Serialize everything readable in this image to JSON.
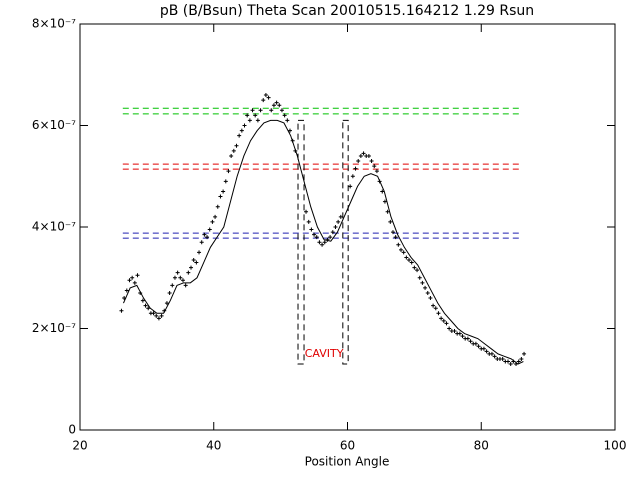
{
  "chart_data": {
    "type": "line",
    "title": "pB (B/Bsun) Theta Scan 20010515.164212 1.29 Rsun",
    "xlabel": "Position Angle",
    "xlim": [
      20,
      100
    ],
    "xticks": [
      20,
      40,
      60,
      80,
      100
    ],
    "ylim": [
      0,
      8e-07
    ],
    "yticks": [
      0,
      {
        "value": 2e-07,
        "label": "2×10⁻⁷"
      },
      {
        "value": 4e-07,
        "label": "4×10⁻⁷"
      },
      {
        "value": 6e-07,
        "label": "6×10⁻⁷"
      },
      {
        "value": 8e-07,
        "label": "8×10⁻⁷"
      }
    ],
    "series": [
      {
        "mode": "markers",
        "color": "#000000",
        "x": [
          26.2,
          26.6,
          27.0,
          27.4,
          27.8,
          28.2,
          28.6,
          29.0,
          29.4,
          29.8,
          30.2,
          30.6,
          31.0,
          31.4,
          31.8,
          32.2,
          32.6,
          33.0,
          33.4,
          33.8,
          34.2,
          34.6,
          35.0,
          35.4,
          35.8,
          36.2,
          36.6,
          37.0,
          37.4,
          37.8,
          38.2,
          38.6,
          39.0,
          39.4,
          39.8,
          40.2,
          40.6,
          41.0,
          41.4,
          41.8,
          42.2,
          42.6,
          43.0,
          43.4,
          43.8,
          44.2,
          44.6,
          45.0,
          45.4,
          45.8,
          46.2,
          46.6,
          47.0,
          47.4,
          47.8,
          48.2,
          48.6,
          49.0,
          49.4,
          49.8,
          50.2,
          50.6,
          51.0,
          51.4,
          51.8,
          52.2,
          53.8,
          54.2,
          54.6,
          55.0,
          55.4,
          55.8,
          56.2,
          56.6,
          57.0,
          57.4,
          57.8,
          58.2,
          58.6,
          59.0,
          60.4,
          60.8,
          61.2,
          61.6,
          62.0,
          62.4,
          62.8,
          63.2,
          63.6,
          64.0,
          64.4,
          64.8,
          65.2,
          65.6,
          66.0,
          66.4,
          66.8,
          67.2,
          67.6,
          68.0,
          68.4,
          68.8,
          69.2,
          69.6,
          70.0,
          70.4,
          70.8,
          71.2,
          71.6,
          72.0,
          72.4,
          72.8,
          73.2,
          73.6,
          74.0,
          74.4,
          74.8,
          75.2,
          75.6,
          76.0,
          76.4,
          76.8,
          77.2,
          77.6,
          78.0,
          78.4,
          78.8,
          79.2,
          79.6,
          80.0,
          80.4,
          80.8,
          81.2,
          81.6,
          82.0,
          82.4,
          82.8,
          83.2,
          83.6,
          84.0,
          84.4,
          84.8,
          85.2,
          85.6,
          86.0,
          86.4
        ],
        "values": [
          2.35e-07,
          2.6e-07,
          2.75e-07,
          2.95e-07,
          3e-07,
          2.9e-07,
          3.05e-07,
          2.7e-07,
          2.55e-07,
          2.45e-07,
          2.4e-07,
          2.3e-07,
          2.3e-07,
          2.25e-07,
          2.2e-07,
          2.25e-07,
          2.35e-07,
          2.5e-07,
          2.7e-07,
          2.85e-07,
          3e-07,
          3.1e-07,
          3e-07,
          2.95e-07,
          2.85e-07,
          3.1e-07,
          3.2e-07,
          3.35e-07,
          3.3e-07,
          3.5e-07,
          3.7e-07,
          3.85e-07,
          3.8e-07,
          3.95e-07,
          4.1e-07,
          4.2e-07,
          4.4e-07,
          4.6e-07,
          4.7e-07,
          4.9e-07,
          5.1e-07,
          5.4e-07,
          5.5e-07,
          5.6e-07,
          5.8e-07,
          5.9e-07,
          6e-07,
          6.2e-07,
          6.1e-07,
          6.3e-07,
          6.2e-07,
          6.1e-07,
          6.3e-07,
          6.5e-07,
          6.6e-07,
          6.55e-07,
          6.3e-07,
          6.4e-07,
          6.45e-07,
          6.4e-07,
          6.3e-07,
          6.2e-07,
          6.1e-07,
          5.9e-07,
          5.7e-07,
          5.5e-07,
          4.3e-07,
          4.1e-07,
          3.95e-07,
          3.85e-07,
          3.8e-07,
          3.7e-07,
          3.65e-07,
          3.7e-07,
          3.75e-07,
          3.8e-07,
          3.9e-07,
          4e-07,
          4.1e-07,
          4.2e-07,
          4.8e-07,
          5e-07,
          5.15e-07,
          5.3e-07,
          5.4e-07,
          5.45e-07,
          5.4e-07,
          5.4e-07,
          5.3e-07,
          5.2e-07,
          5.1e-07,
          4.9e-07,
          4.7e-07,
          4.5e-07,
          4.3e-07,
          4.1e-07,
          3.9e-07,
          3.8e-07,
          3.65e-07,
          3.55e-07,
          3.5e-07,
          3.4e-07,
          3.35e-07,
          3.3e-07,
          3.2e-07,
          3.15e-07,
          3e-07,
          2.9e-07,
          2.8e-07,
          2.7e-07,
          2.6e-07,
          2.45e-07,
          2.4e-07,
          2.3e-07,
          2.2e-07,
          2.15e-07,
          2.1e-07,
          2e-07,
          1.95e-07,
          1.95e-07,
          1.9e-07,
          1.9e-07,
          1.85e-07,
          1.8e-07,
          1.8e-07,
          1.75e-07,
          1.7e-07,
          1.7e-07,
          1.65e-07,
          1.6e-07,
          1.6e-07,
          1.55e-07,
          1.5e-07,
          1.5e-07,
          1.45e-07,
          1.4e-07,
          1.4e-07,
          1.4e-07,
          1.35e-07,
          1.35e-07,
          1.3e-07,
          1.35e-07,
          1.3e-07,
          1.35e-07,
          1.4e-07,
          1.5e-07
        ]
      },
      {
        "mode": "line",
        "color": "#000000",
        "x": [
          26.5,
          27.5,
          28.5,
          29.5,
          30.5,
          31.5,
          32.5,
          33.5,
          34.5,
          35.5,
          36.5,
          37.5,
          38.5,
          39.5,
          40.5,
          41.5,
          42.5,
          43.5,
          44.5,
          45.5,
          46.5,
          47.5,
          48.5,
          49.5,
          50.5,
          51.5,
          52.5,
          53.5,
          54.5,
          55.5,
          56.5,
          57.5,
          58.5,
          59.5,
          60.5,
          61.5,
          62.5,
          63.5,
          64.5,
          65.5,
          66.5,
          67.5,
          68.5,
          69.5,
          70.5,
          71.5,
          72.5,
          73.5,
          74.5,
          75.5,
          76.5,
          77.5,
          78.5,
          79.5,
          80.5,
          81.5,
          82.5,
          83.5,
          84.5,
          85.5,
          86.3
        ],
        "values": [
          2.5e-07,
          2.8e-07,
          2.85e-07,
          2.6e-07,
          2.4e-07,
          2.3e-07,
          2.3e-07,
          2.55e-07,
          2.85e-07,
          2.9e-07,
          2.9e-07,
          3e-07,
          3.3e-07,
          3.6e-07,
          3.8e-07,
          4e-07,
          4.5e-07,
          5e-07,
          5.4e-07,
          5.7e-07,
          5.9e-07,
          6.05e-07,
          6.1e-07,
          6.1e-07,
          6.05e-07,
          5.8e-07,
          5.4e-07,
          4.9e-07,
          4.4e-07,
          4e-07,
          3.75e-07,
          3.72e-07,
          3.9e-07,
          4.2e-07,
          4.5e-07,
          4.8e-07,
          5e-07,
          5.05e-07,
          5e-07,
          4.7e-07,
          4.2e-07,
          3.85e-07,
          3.6e-07,
          3.4e-07,
          3.25e-07,
          3e-07,
          2.75e-07,
          2.5e-07,
          2.3e-07,
          2.15e-07,
          2e-07,
          1.9e-07,
          1.85e-07,
          1.8e-07,
          1.7e-07,
          1.6e-07,
          1.5e-07,
          1.45e-07,
          1.4e-07,
          1.3e-07,
          1.35e-07
        ]
      }
    ],
    "reference_lines": [
      {
        "value": 6.34e-07,
        "x": [
          26.4,
          86.2
        ],
        "color": "#00c000"
      },
      {
        "value": 6.23e-07,
        "x": [
          26.4,
          86.2
        ],
        "color": "#00c000"
      },
      {
        "value": 5.24e-07,
        "x": [
          26.4,
          86.2
        ],
        "color": "#e00000"
      },
      {
        "value": 5.14e-07,
        "x": [
          26.4,
          86.2
        ],
        "color": "#e00000"
      },
      {
        "value": 3.88e-07,
        "x": [
          26.4,
          86.2
        ],
        "color": "#2020b0"
      },
      {
        "value": 3.78e-07,
        "x": [
          26.4,
          86.2
        ],
        "color": "#2020b0"
      }
    ],
    "boxes": [
      {
        "x": [
          52.6,
          53.5
        ],
        "y": [
          1.3e-07,
          6.1e-07
        ]
      },
      {
        "x": [
          59.3,
          60.1
        ],
        "y": [
          1.3e-07,
          6.1e-07
        ]
      }
    ],
    "annotation": {
      "text": "CAVITY",
      "x": 56.5,
      "y": 1.5e-07,
      "color": "#e00000"
    }
  }
}
